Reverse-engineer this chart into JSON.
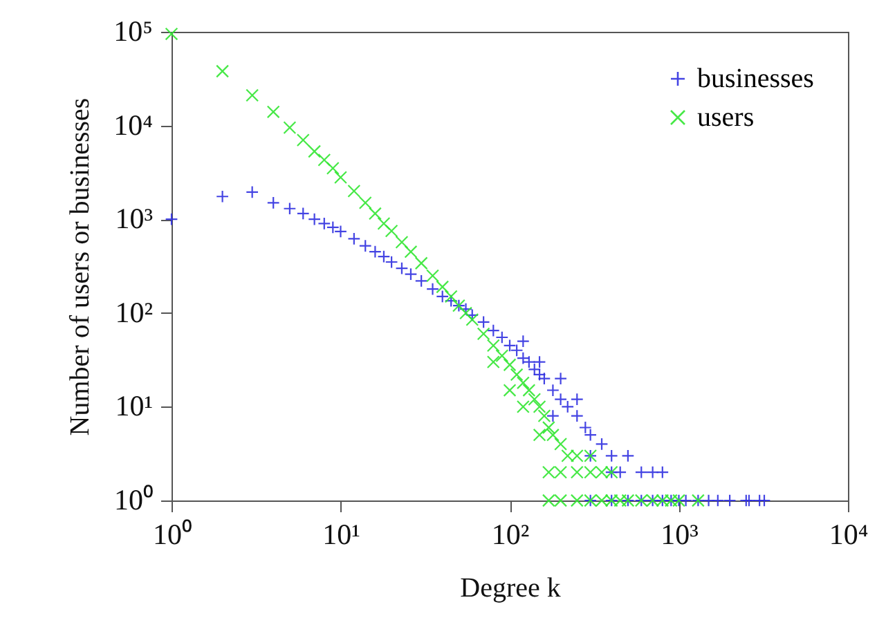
{
  "chart_data": {
    "type": "scatter",
    "xlabel": "Degree k",
    "ylabel": "Number of users or businesses",
    "log": "xy",
    "marker": "cross",
    "legend": "top right",
    "xlim": [
      1,
      10000
    ],
    "ylim": [
      1,
      100000
    ],
    "xticks": [
      {
        "value": 1,
        "label": "10⁰"
      },
      {
        "value": 10,
        "label": "10¹"
      },
      {
        "value": 100,
        "label": "10²"
      },
      {
        "value": 1000,
        "label": "10³"
      },
      {
        "value": 10000,
        "label": "10⁴"
      }
    ],
    "yticks": [
      {
        "value": 1,
        "label": "10⁰"
      },
      {
        "value": 10,
        "label": "10¹"
      },
      {
        "value": 100,
        "label": "10²"
      },
      {
        "value": 1000,
        "label": "10³"
      },
      {
        "value": 10000,
        "label": "10⁴"
      },
      {
        "value": 100000,
        "label": "10⁵"
      }
    ],
    "series": [
      {
        "name": "businesses",
        "color": "#3030e0",
        "x": [
          1,
          2,
          3,
          4,
          5,
          6,
          7,
          8,
          9,
          10,
          12,
          14,
          16,
          18,
          20,
          23,
          26,
          30,
          35,
          40,
          45,
          50,
          55,
          60,
          70,
          80,
          90,
          100,
          110,
          120,
          130,
          140,
          150,
          160,
          180,
          200,
          220,
          250,
          280,
          300,
          350,
          400,
          450,
          500,
          600,
          700,
          800,
          120,
          150,
          180,
          200,
          250,
          300,
          400,
          300,
          400,
          500,
          600,
          700,
          800,
          900,
          1000,
          1100,
          1300,
          1500,
          1700,
          2000,
          2500,
          2600,
          3000,
          3200
        ],
        "values": [
          1000,
          1750,
          1950,
          1500,
          1300,
          1150,
          1000,
          900,
          820,
          740,
          620,
          520,
          450,
          400,
          350,
          300,
          260,
          220,
          180,
          150,
          135,
          120,
          110,
          95,
          80,
          65,
          55,
          45,
          40,
          33,
          30,
          25,
          22,
          20,
          15,
          12,
          10,
          8,
          6,
          5,
          4,
          3,
          2,
          3,
          2,
          2,
          2,
          50,
          30,
          8,
          20,
          12,
          3,
          2,
          1,
          1,
          1,
          1,
          1,
          1,
          1,
          1,
          1,
          1,
          1,
          1,
          1,
          1,
          1,
          1,
          1
        ]
      },
      {
        "name": "users",
        "color": "#33e633",
        "x": [
          1,
          2,
          3,
          4,
          5,
          6,
          7,
          8,
          9,
          10,
          12,
          14,
          16,
          18,
          20,
          23,
          26,
          30,
          35,
          40,
          45,
          50,
          55,
          60,
          70,
          80,
          90,
          100,
          110,
          120,
          130,
          140,
          150,
          160,
          170,
          180,
          200,
          220,
          250,
          300,
          80,
          100,
          120,
          150,
          300,
          170,
          200,
          250,
          350,
          400,
          170,
          200,
          250,
          300,
          350,
          400,
          450,
          500,
          600,
          700,
          800,
          900,
          1000,
          1300
        ],
        "values": [
          95000,
          38000,
          21000,
          14000,
          9500,
          7000,
          5300,
          4300,
          3500,
          2800,
          2000,
          1500,
          1150,
          900,
          750,
          570,
          450,
          340,
          250,
          190,
          150,
          120,
          100,
          85,
          60,
          45,
          35,
          28,
          22,
          18,
          15,
          12,
          10,
          8,
          6,
          5,
          4,
          3,
          3,
          2,
          30,
          15,
          10,
          5,
          3,
          2,
          2,
          2,
          2,
          2,
          1,
          1,
          1,
          1,
          1,
          1,
          1,
          1,
          1,
          1,
          1,
          1,
          1,
          1
        ]
      }
    ]
  }
}
